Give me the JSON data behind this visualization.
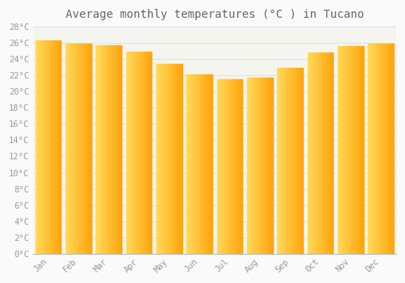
{
  "title": "Average monthly temperatures (°C ) in Tucano",
  "months": [
    "Jan",
    "Feb",
    "Mar",
    "Apr",
    "May",
    "Jun",
    "Jul",
    "Aug",
    "Sep",
    "Oct",
    "Nov",
    "Dec"
  ],
  "values": [
    26.3,
    25.9,
    25.7,
    24.9,
    23.4,
    22.1,
    21.5,
    21.7,
    22.9,
    24.8,
    25.6,
    25.9
  ],
  "bar_color_left": "#FFD060",
  "bar_color_right": "#FFA500",
  "ylim": [
    0,
    28
  ],
  "ytick_values": [
    0,
    2,
    4,
    6,
    8,
    10,
    12,
    14,
    16,
    18,
    20,
    22,
    24,
    26,
    28
  ],
  "background_color": "#FAFAFA",
  "plot_bg_color": "#F5F5F0",
  "grid_color": "#DDDDDD",
  "title_fontsize": 10,
  "tick_fontsize": 7.5,
  "tick_font_color": "#999999",
  "title_font_color": "#666666"
}
